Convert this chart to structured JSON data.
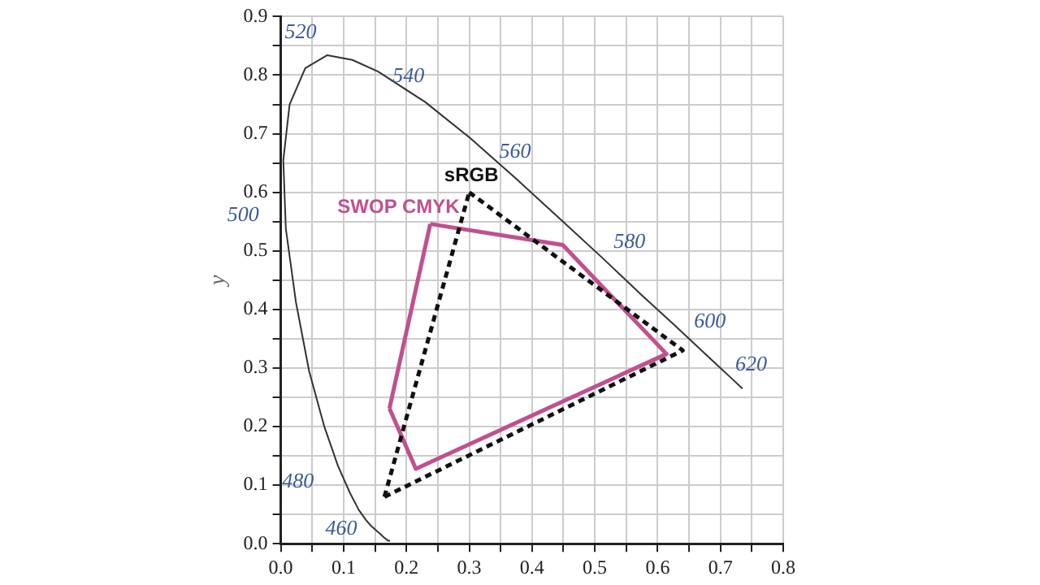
{
  "chart_data": {
    "type": "line",
    "ylabel": "y",
    "xlim": [
      0,
      0.8
    ],
    "ylim": [
      0,
      0.9
    ],
    "xticks": [
      {
        "value": 0,
        "label": "0.0"
      },
      {
        "value": 0.05,
        "label": null
      },
      {
        "value": 0.1,
        "label": "0.1"
      },
      {
        "value": 0.15,
        "label": null
      },
      {
        "value": 0.2,
        "label": "0.2"
      },
      {
        "value": 0.25,
        "label": null
      },
      {
        "value": 0.3,
        "label": "0.3"
      },
      {
        "value": 0.35,
        "label": null
      },
      {
        "value": 0.4,
        "label": "0.4"
      },
      {
        "value": 0.45,
        "label": null
      },
      {
        "value": 0.5,
        "label": "0.5"
      },
      {
        "value": 0.55,
        "label": null
      },
      {
        "value": 0.6,
        "label": "0.6"
      },
      {
        "value": 0.65,
        "label": null
      },
      {
        "value": 0.7,
        "label": "0.7"
      },
      {
        "value": 0.75,
        "label": null
      },
      {
        "value": 0.8,
        "label": "0.8"
      }
    ],
    "yticks": [
      {
        "value": 0,
        "label": "0.0"
      },
      {
        "value": 0.05,
        "label": null
      },
      {
        "value": 0.1,
        "label": "0.1"
      },
      {
        "value": 0.15,
        "label": null
      },
      {
        "value": 0.2,
        "label": "0.2"
      },
      {
        "value": 0.25,
        "label": null
      },
      {
        "value": 0.3,
        "label": "0.3"
      },
      {
        "value": 0.35,
        "label": null
      },
      {
        "value": 0.4,
        "label": "0.4"
      },
      {
        "value": 0.45,
        "label": null
      },
      {
        "value": 0.5,
        "label": "0.5"
      },
      {
        "value": 0.55,
        "label": null
      },
      {
        "value": 0.6,
        "label": "0.6"
      },
      {
        "value": 0.65,
        "label": null
      },
      {
        "value": 0.7,
        "label": "0.7"
      },
      {
        "value": 0.75,
        "label": null
      },
      {
        "value": 0.8,
        "label": "0.8"
      },
      {
        "value": 0.85,
        "label": null
      },
      {
        "value": 0.9,
        "label": "0.9"
      }
    ],
    "grid": true,
    "marker": "none",
    "legend": false,
    "series": [
      {
        "color": "#333333",
        "line_style": "solid",
        "x": [
          0.174,
          0.171,
          0.164,
          0.157,
          0.144,
          0.136,
          0.124,
          0.11,
          0.091,
          0.069,
          0.045,
          0.024,
          0.008,
          0.004,
          0.014,
          0.039,
          0.074,
          0.114,
          0.155,
          0.23,
          0.302,
          0.373,
          0.444,
          0.513,
          0.575,
          0.627,
          0.666,
          0.692,
          0.719,
          0.735
        ],
        "values": [
          0.005,
          0.005,
          0.011,
          0.018,
          0.03,
          0.04,
          0.058,
          0.087,
          0.133,
          0.201,
          0.295,
          0.413,
          0.538,
          0.655,
          0.75,
          0.812,
          0.834,
          0.826,
          0.806,
          0.754,
          0.692,
          0.625,
          0.555,
          0.487,
          0.424,
          0.373,
          0.334,
          0.308,
          0.281,
          0.265
        ]
      },
      {
        "name": "sRGB",
        "color": "#111111",
        "line_style": "dashed",
        "x": [
          0.3,
          0.64,
          0.165
        ],
        "values": [
          0.6,
          0.33,
          0.08
        ]
      },
      {
        "color": "#111111",
        "line_style": "dashed",
        "x": [
          0.165,
          0.3
        ],
        "values": [
          0.08,
          0.6
        ]
      },
      {
        "name": "SWOP CMYK",
        "color": "#c0508f",
        "line_style": "solid",
        "x": [
          0.238,
          0.449,
          0.614,
          0.215,
          0.173
        ],
        "values": [
          0.546,
          0.51,
          0.324,
          0.128,
          0.231
        ]
      },
      {
        "color": "#c0508f",
        "line_style": "solid",
        "x": [
          0.173,
          0.238
        ],
        "values": [
          0.231,
          0.546
        ]
      }
    ],
    "annotations": [
      {
        "text": "460",
        "x": 0.144,
        "y": 0.03
      },
      {
        "text": "480",
        "x": 0.091,
        "y": 0.133
      },
      {
        "text": "500",
        "x": 0.008,
        "y": 0.538
      },
      {
        "text": "520",
        "x": 0.074,
        "y": 0.834
      },
      {
        "text": "540",
        "x": 0.23,
        "y": 0.754
      },
      {
        "text": "560",
        "x": 0.373,
        "y": 0.625
      },
      {
        "text": "580",
        "x": 0.513,
        "y": 0.487
      },
      {
        "text": "600",
        "x": 0.627,
        "y": 0.373
      },
      {
        "text": "620",
        "x": 0.692,
        "y": 0.308
      }
    ]
  }
}
